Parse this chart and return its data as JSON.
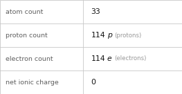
{
  "rows": [
    {
      "label": "atom count",
      "value": "33",
      "symbol": "",
      "suffix": ""
    },
    {
      "label": "proton count",
      "value": "114",
      "symbol": "p",
      "suffix": "(protons)"
    },
    {
      "label": "electron count",
      "value": "114",
      "symbol": "e",
      "suffix": "(electrons)"
    },
    {
      "label": "net ionic charge",
      "value": "0",
      "symbol": "",
      "suffix": ""
    }
  ],
  "col_split": 0.455,
  "bg_color": "#ffffff",
  "border_color": "#c8c8c8",
  "label_color": "#606060",
  "value_color": "#111111",
  "symbol_color": "#111111",
  "suffix_color": "#999999",
  "label_fontsize": 6.8,
  "value_fontsize": 7.8,
  "symbol_fontsize": 7.8,
  "suffix_fontsize": 6.2
}
